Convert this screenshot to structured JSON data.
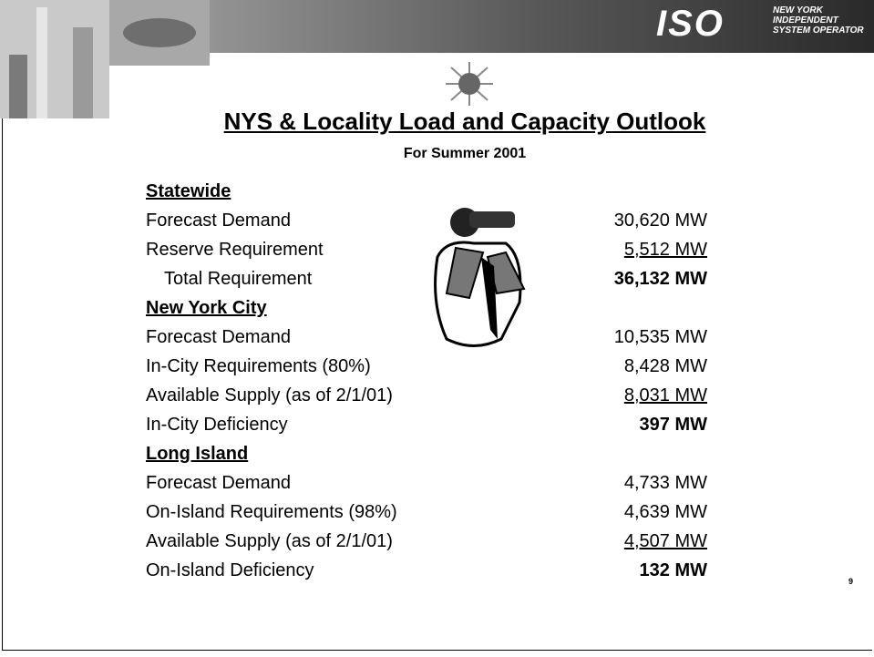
{
  "logo": {
    "mark": "ISO",
    "lines": [
      "NEW YORK",
      "INDEPENDENT",
      "SYSTEM OPERATOR"
    ]
  },
  "title": "NYS & Locality Load and Capacity Outlook",
  "subtitle": "For Summer 2001",
  "sections": [
    {
      "heading": "Statewide",
      "rows": [
        {
          "label": "Forecast Demand",
          "value": "30,620 MW"
        },
        {
          "label": "Reserve Requirement",
          "value": "5,512 MW"
        },
        {
          "label": "Total Requirement",
          "value": "36,132 MW"
        }
      ]
    },
    {
      "heading": "New York City",
      "rows": [
        {
          "label": "Forecast Demand",
          "value": "10,535 MW"
        },
        {
          "label": "In-City Requirements (80%)",
          "value": "8,428 MW"
        },
        {
          "label": "Available Supply (as of 2/1/01)",
          "value": "8,031 MW"
        },
        {
          "label": "In-City Deficiency",
          "value": "397 MW"
        }
      ]
    },
    {
      "heading": "Long Island",
      "rows": [
        {
          "label": "Forecast Demand",
          "value": "4,733 MW"
        },
        {
          "label": "On-Island Requirements (98%)",
          "value": "4,639 MW"
        },
        {
          "label": "Available Supply (as of 2/1/01)",
          "value": "4,507 MW"
        },
        {
          "label": "On-Island Deficiency",
          "value": "132 MW"
        }
      ]
    }
  ],
  "page_number": "9"
}
